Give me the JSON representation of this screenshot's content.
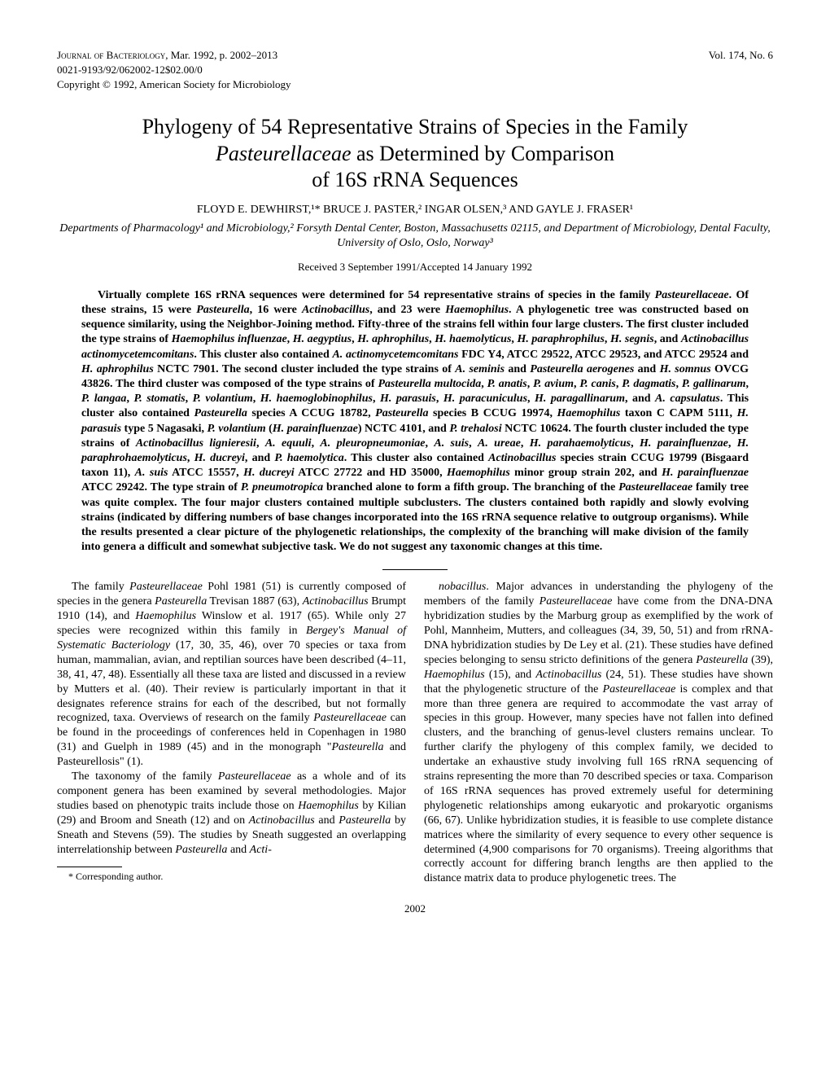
{
  "header": {
    "journal": "Journal of Bacteriology,",
    "date_pages": "Mar. 1992, p. 2002–2013",
    "volume": "Vol. 174, No. 6",
    "issn": "0021-9193/92/062002-12$02.00/0",
    "copyright": "Copyright © 1992, American Society for Microbiology"
  },
  "title": {
    "line1": "Phylogeny of 54 Representative Strains of Species in the Family",
    "line2_italic": "Pasteurellaceae",
    "line2_rest": " as Determined by Comparison",
    "line3": "of 16S rRNA Sequences"
  },
  "authors": "FLOYD E. DEWHIRST,¹* BRUCE J. PASTER,² INGAR OLSEN,³ AND GAYLE J. FRASER¹",
  "affiliations": "Departments of Pharmacology¹ and Microbiology,² Forsyth Dental Center, Boston, Massachusetts 02115, and Department of Microbiology, Dental Faculty, University of Oslo, Oslo, Norway³",
  "received": "Received 3 September 1991/Accepted 14 January 1992",
  "abstract_html": "Virtually complete 16S rRNA sequences were determined for 54 representative strains of species in the family <span class=\"italic\">Pasteurellaceae</span>. Of these strains, 15 were <span class=\"italic\">Pasteurella</span>, 16 were <span class=\"italic\">Actinobacillus</span>, and 23 were <span class=\"italic\">Haemophilus</span>. A phylogenetic tree was constructed based on sequence similarity, using the Neighbor-Joining method. Fifty-three of the strains fell within four large clusters. The first cluster included the type strains of <span class=\"italic\">Haemophilus influenzae</span>, <span class=\"italic\">H. aegyptius</span>, <span class=\"italic\">H. aphrophilus</span>, <span class=\"italic\">H. haemolyticus</span>, <span class=\"italic\">H. paraphrophilus</span>, <span class=\"italic\">H. segnis</span>, and <span class=\"italic\">Actinobacillus actinomycetemcomitans</span>. This cluster also contained <span class=\"italic\">A. actinomycetemcomitans</span> FDC Y4, ATCC 29522, ATCC 29523, and ATCC 29524 and <span class=\"italic\">H. aphrophilus</span> NCTC 7901. The second cluster included the type strains of <span class=\"italic\">A. seminis</span> and <span class=\"italic\">Pasteurella aerogenes</span> and <span class=\"italic\">H. somnus</span> OVCG 43826. The third cluster was composed of the type strains of <span class=\"italic\">Pasteurella multocida</span>, <span class=\"italic\">P. anatis</span>, <span class=\"italic\">P. avium</span>, <span class=\"italic\">P. canis</span>, <span class=\"italic\">P. dagmatis</span>, <span class=\"italic\">P. gallinarum</span>, <span class=\"italic\">P. langaa</span>, <span class=\"italic\">P. stomatis</span>, <span class=\"italic\">P. volantium</span>, <span class=\"italic\">H. haemoglobinophilus</span>, <span class=\"italic\">H. parasuis</span>, <span class=\"italic\">H. paracuniculus</span>, <span class=\"italic\">H. paragallinarum</span>, and <span class=\"italic\">A. capsulatus</span>. This cluster also contained <span class=\"italic\">Pasteurella</span> species A CCUG 18782, <span class=\"italic\">Pasteurella</span> species B CCUG 19974, <span class=\"italic\">Haemophilus</span> taxon C CAPM 5111, <span class=\"italic\">H. parasuis</span> type 5 Nagasaki, <span class=\"italic\">P. volantium</span> (<span class=\"italic\">H. parainfluenzae</span>) NCTC 4101, and <span class=\"italic\">P. trehalosi</span> NCTC 10624. The fourth cluster included the type strains of <span class=\"italic\">Actinobacillus lignieresii</span>, <span class=\"italic\">A. equuli</span>, <span class=\"italic\">A. pleuropneumoniae</span>, <span class=\"italic\">A. suis</span>, <span class=\"italic\">A. ureae</span>, <span class=\"italic\">H. parahaemolyticus</span>, <span class=\"italic\">H. parainfluenzae</span>, <span class=\"italic\">H. paraphrohaemolyticus</span>, <span class=\"italic\">H. ducreyi</span>, and <span class=\"italic\">P. haemolytica</span>. This cluster also contained <span class=\"italic\">Actinobacillus</span> species strain CCUG 19799 (Bisgaard taxon 11), <span class=\"italic\">A. suis</span> ATCC 15557, <span class=\"italic\">H. ducreyi</span> ATCC 27722 and HD 35000, <span class=\"italic\">Haemophilus</span> minor group strain 202, and <span class=\"italic\">H. parainfluenzae</span> ATCC 29242. The type strain of <span class=\"italic\">P. pneumotropica</span> branched alone to form a fifth group. The branching of the <span class=\"italic\">Pasteurellaceae</span> family tree was quite complex. The four major clusters contained multiple subclusters. The clusters contained both rapidly and slowly evolving strains (indicated by differing numbers of base changes incorporated into the 16S rRNA sequence relative to outgroup organisms). While the results presented a clear picture of the phylogenetic relationships, the complexity of the branching will make division of the family into genera a difficult and somewhat subjective task. We do not suggest any taxonomic changes at this time.",
  "body": {
    "p1_html": "The family <span class=\"italic\">Pasteurellaceae</span> Pohl 1981 (51) is currently composed of species in the genera <span class=\"italic\">Pasteurella</span> Trevisan 1887 (63), <span class=\"italic\">Actinobacillus</span> Brumpt 1910 (14), and <span class=\"italic\">Haemophilus</span> Winslow et al. 1917 (65). While only 27 species were recognized within this family in <span class=\"italic\">Bergey's Manual of Systematic Bacteriology</span> (17, 30, 35, 46), over 70 species or taxa from human, mammalian, avian, and reptilian sources have been described (4–11, 38, 41, 47, 48). Essentially all these taxa are listed and discussed in a review by Mutters et al. (40). Their review is particularly important in that it designates reference strains for each of the described, but not formally recognized, taxa. Overviews of research on the family <span class=\"italic\">Pasteurellaceae</span> can be found in the proceedings of conferences held in Copenhagen in 1980 (31) and Guelph in 1989 (45) and in the monograph \"<span class=\"italic\">Pasteurella</span> and Pasteurellosis\" (1).",
    "p2_html": "The taxonomy of the family <span class=\"italic\">Pasteurellaceae</span> as a whole and of its component genera has been examined by several methodologies. Major studies based on phenotypic traits include those on <span class=\"italic\">Haemophilus</span> by Kilian (29) and Broom and Sneath (12) and on <span class=\"italic\">Actinobacillus</span> and <span class=\"italic\">Pasteurella</span> by Sneath and Stevens (59). The studies by Sneath suggested an overlapping interrelationship between <span class=\"italic\">Pasteurella</span> and <span class=\"italic\">Acti-</span>",
    "p3_html": "<span class=\"italic\">nobacillus</span>. Major advances in understanding the phylogeny of the members of the family <span class=\"italic\">Pasteurellaceae</span> have come from the DNA-DNA hybridization studies by the Marburg group as exemplified by the work of Pohl, Mannheim, Mutters, and colleagues (34, 39, 50, 51) and from rRNA-DNA hybridization studies by De Ley et al. (21). These studies have defined species belonging to sensu stricto definitions of the genera <span class=\"italic\">Pasteurella</span> (39), <span class=\"italic\">Haemophilus</span> (15), and <span class=\"italic\">Actinobacillus</span> (24, 51). These studies have shown that the phylogenetic structure of the <span class=\"italic\">Pasteurellaceae</span> is complex and that more than three genera are required to accommodate the vast array of species in this group. However, many species have not fallen into defined clusters, and the branching of genus-level clusters remains unclear. To further clarify the phylogeny of this complex family, we decided to undertake an exhaustive study involving full 16S rRNA sequencing of strains representing the more than 70 described species or taxa. Comparison of 16S rRNA sequences has proved extremely useful for determining phylogenetic relationships among eukaryotic and prokaryotic organisms (66, 67). Unlike hybridization studies, it is feasible to use complete distance matrices where the similarity of every sequence to every other sequence is determined (4,900 comparisons for 70 organisms). Treeing algorithms that correctly account for differing branch lengths are then applied to the distance matrix data to produce phylogenetic trees. The"
  },
  "footnote": "* Corresponding author.",
  "page_number": "2002"
}
